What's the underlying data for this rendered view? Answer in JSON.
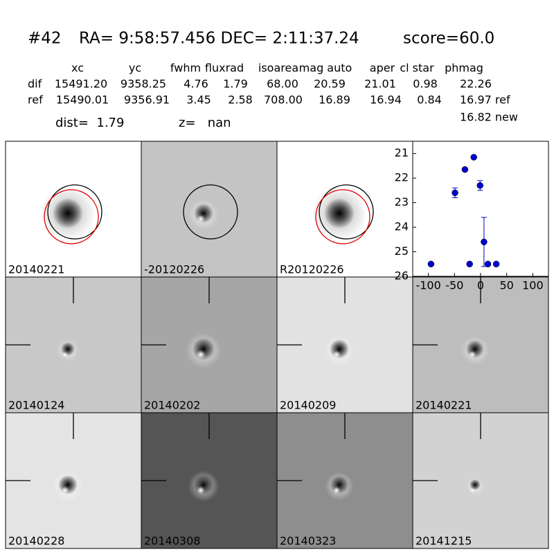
{
  "header": {
    "id": "#42",
    "coords": "RA= 9:58:57.456 DEC= 2:11:37.24",
    "score": "score=60.0"
  },
  "table": {
    "columns": [
      "xc",
      "yc",
      "fwhm",
      "fluxrad",
      "isoarea",
      "mag auto",
      "aper",
      "cl star",
      "phmag"
    ],
    "rows": [
      [
        "dif",
        "15491.20",
        "9358.25",
        "4.76",
        "1.79",
        "68.00",
        "20.59",
        "21.01",
        "0.98",
        "22.26"
      ],
      [
        "ref",
        "15490.01",
        "9356.91",
        "3.45",
        "2.58",
        "708.00",
        "16.89",
        "16.94",
        "0.84",
        "16.97 ref"
      ]
    ],
    "extra": "16.82 new"
  },
  "dist": "dist=  1.79",
  "z": "z=   nan",
  "panels": [
    {
      "label": "20140221"
    },
    {
      "label": "-20120226"
    },
    {
      "label": "R20120226"
    },
    {
      "label": "20140124"
    },
    {
      "label": "20140202"
    },
    {
      "label": "20140209"
    },
    {
      "label": "20140221",
      "color": "#ff0000"
    },
    {
      "label": "20140228"
    },
    {
      "label": "20140308"
    },
    {
      "label": "20140323"
    },
    {
      "label": "20141215"
    }
  ],
  "chart_data": {
    "type": "scatter",
    "color": "#0000cc",
    "x": [
      -95,
      -49,
      -30,
      -13,
      -1,
      -21,
      6.5,
      14,
      30
    ],
    "values": [
      25.5,
      22.6,
      21.65,
      21.15,
      22.3,
      25.5,
      24.6,
      25.5,
      25.5
    ],
    "errors": [
      0.05,
      0.2,
      0.05,
      0.03,
      0.2,
      0.05,
      1.0,
      0.05,
      0.05
    ],
    "xlim": [
      -130,
      130
    ],
    "xticks": [
      -100,
      -50,
      0,
      50,
      100
    ],
    "ylim": [
      20.5,
      26
    ],
    "yticks": [
      21,
      22,
      23,
      24,
      25,
      26
    ],
    "invert_y": true
  }
}
